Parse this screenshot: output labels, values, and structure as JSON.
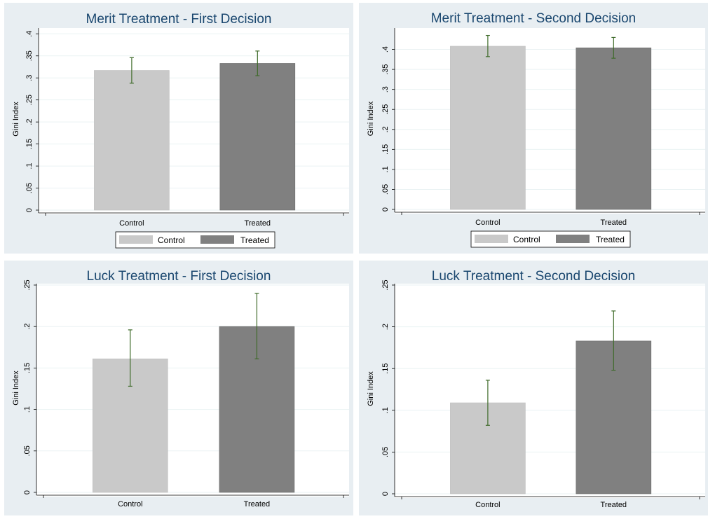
{
  "colors": {
    "control_bar": "#c9c9c9",
    "treated_bar": "#808080",
    "error_bar": "#3f6b2a",
    "title": "#1a476f",
    "background": "#e8eef2"
  },
  "chart_data": [
    {
      "type": "bar",
      "title": "Merit Treatment - First Decision",
      "ylabel": "Gini Index",
      "categories": [
        "Control",
        "Treated"
      ],
      "values": [
        0.317,
        0.333
      ],
      "ci_low": [
        0.288,
        0.305
      ],
      "ci_high": [
        0.346,
        0.361
      ],
      "ylim": [
        0,
        0.41
      ],
      "yticks": [
        0,
        0.05,
        0.1,
        0.15,
        0.2,
        0.25,
        0.3,
        0.35,
        0.4
      ],
      "ytick_labels": [
        "0",
        ".05",
        ".1",
        ".15",
        ".2",
        ".25",
        ".3",
        ".35",
        ".4"
      ],
      "legend": [
        "Control",
        "Treated"
      ],
      "grid": true
    },
    {
      "type": "bar",
      "title": "Merit Treatment - Second Decision",
      "ylabel": "Gini Index",
      "categories": [
        "Control",
        "Treated"
      ],
      "values": [
        0.408,
        0.404
      ],
      "ci_low": [
        0.382,
        0.378
      ],
      "ci_high": [
        0.435,
        0.43
      ],
      "ylim": [
        0,
        0.45
      ],
      "yticks": [
        0,
        0.05,
        0.1,
        0.15,
        0.2,
        0.25,
        0.3,
        0.35,
        0.4
      ],
      "ytick_labels": [
        "0",
        ".05",
        ".1",
        ".15",
        ".2",
        ".25",
        ".3",
        ".35",
        ".4"
      ],
      "legend": [
        "Control",
        "Treated"
      ],
      "grid": true
    },
    {
      "type": "bar",
      "title": "Luck Treatment - First Decision",
      "ylabel": "Gini Index",
      "categories": [
        "Control",
        "Treated"
      ],
      "values": [
        0.161,
        0.2
      ],
      "ci_low": [
        0.128,
        0.161
      ],
      "ci_high": [
        0.196,
        0.24
      ],
      "ylim": [
        0,
        0.25
      ],
      "yticks": [
        0,
        0.05,
        0.1,
        0.15,
        0.2,
        0.25
      ],
      "ytick_labels": [
        "0",
        ".05",
        ".1",
        ".15",
        ".2",
        ".25"
      ],
      "legend": [],
      "grid": true
    },
    {
      "type": "bar",
      "title": "Luck Treatment - Second Decision",
      "ylabel": "Gini Index",
      "categories": [
        "Control",
        "Treated"
      ],
      "values": [
        0.109,
        0.183
      ],
      "ci_low": [
        0.082,
        0.148
      ],
      "ci_high": [
        0.136,
        0.219
      ],
      "ylim": [
        0,
        0.25
      ],
      "yticks": [
        0,
        0.05,
        0.1,
        0.15,
        0.2,
        0.25
      ],
      "ytick_labels": [
        "0",
        ".05",
        ".1",
        ".15",
        ".2",
        ".25"
      ],
      "legend": [],
      "grid": true
    }
  ]
}
